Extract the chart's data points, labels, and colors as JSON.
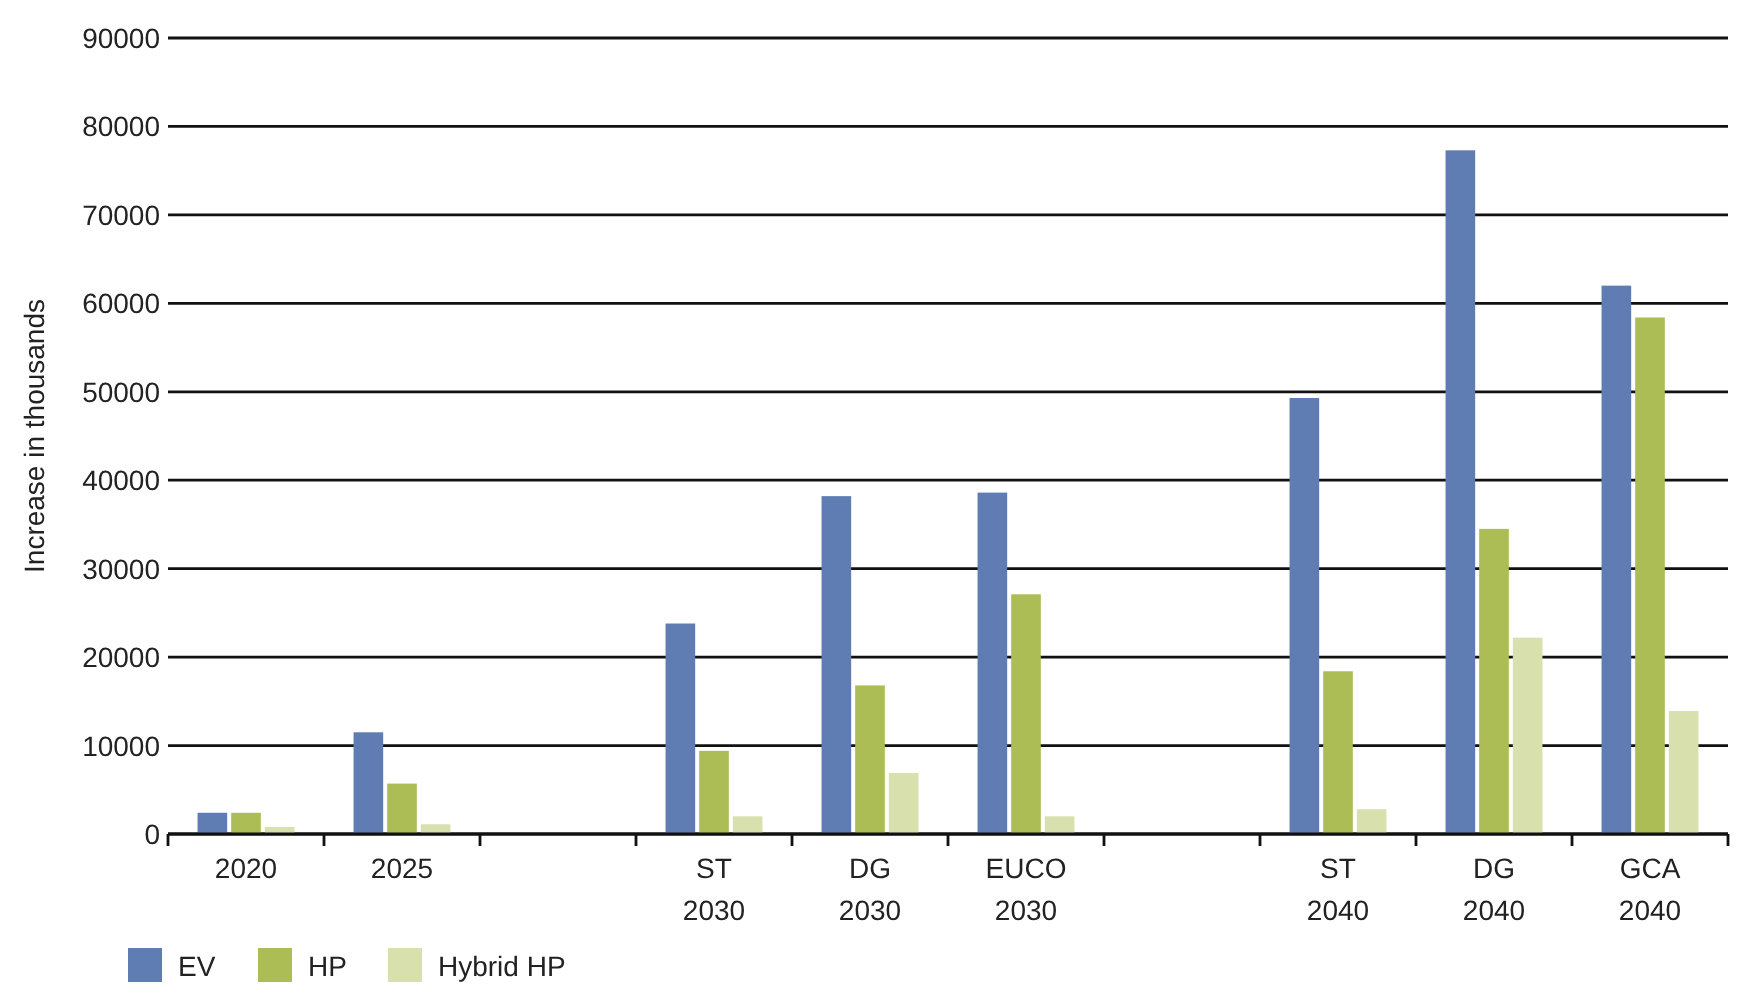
{
  "chart_data": {
    "type": "bar",
    "ylabel": "Increase in thousands",
    "categories": [
      "2020",
      "2025",
      null,
      "ST\n2030",
      "DG\n2030",
      "EUCO\n2030",
      null,
      "ST\n2040",
      "DG\n2040",
      "GCA\n2040"
    ],
    "series": [
      {
        "name": "EV",
        "color": "#5f7db3",
        "values": [
          2400,
          11500,
          null,
          23800,
          38200,
          38600,
          null,
          49300,
          77300,
          62000
        ]
      },
      {
        "name": "HP",
        "color": "#adbd55",
        "values": [
          2400,
          5700,
          null,
          9400,
          16800,
          27100,
          null,
          18400,
          34500,
          58400
        ]
      },
      {
        "name": "Hybrid HP",
        "color": "#d8e0ad",
        "values": [
          800,
          1100,
          null,
          2000,
          6900,
          2000,
          null,
          2800,
          22200,
          13900
        ]
      }
    ],
    "ylim": [
      0,
      90000
    ],
    "yticks": [
      0,
      10000,
      20000,
      30000,
      40000,
      50000,
      60000,
      70000,
      80000,
      90000
    ],
    "grid": "y",
    "legend": "bottom left"
  }
}
